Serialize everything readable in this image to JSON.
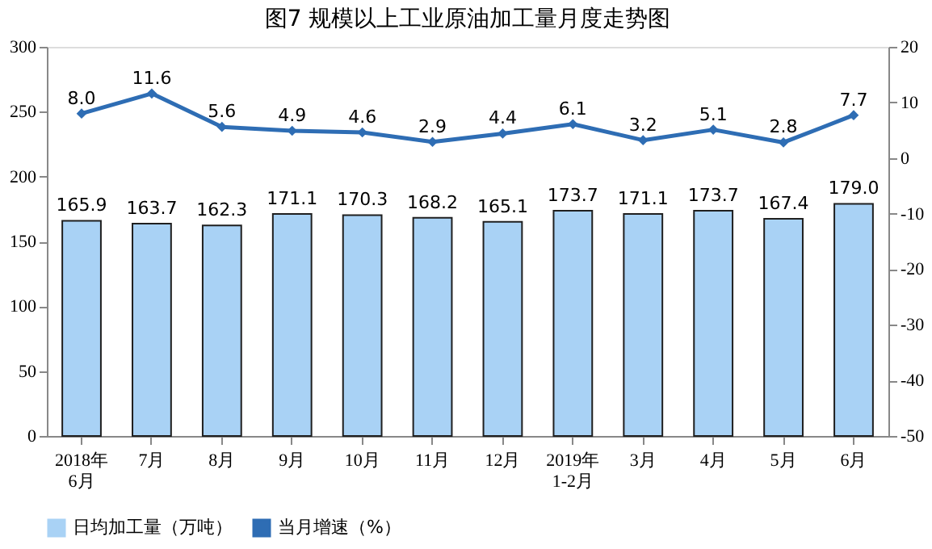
{
  "chart_data": {
    "type": "bar",
    "title": "图7  规模以上工业原油加工量月度走势图",
    "categories": [
      "2018年\n6月",
      "7月",
      "8月",
      "9月",
      "10月",
      "11月",
      "12月",
      "2019年\n1-2月",
      "3月",
      "4月",
      "5月",
      "6月"
    ],
    "series": [
      {
        "name": "日均加工量（万吨）",
        "color": "#a9d2f5",
        "values": [
          165.9,
          163.7,
          162.3,
          171.1,
          170.3,
          168.2,
          165.1,
          173.7,
          171.1,
          173.7,
          167.4,
          179.0
        ],
        "value_labels": [
          "165.9",
          "163.7",
          "162.3",
          "171.1",
          "170.3",
          "168.2",
          "165.1",
          "173.7",
          "171.1",
          "173.7",
          "167.4",
          "179.0"
        ]
      },
      {
        "name": "当月增速（%）",
        "type": "line",
        "axis": "y2",
        "color": "#2e6db4",
        "marker": "diamond",
        "values": [
          8.0,
          11.6,
          5.6,
          4.9,
          4.6,
          2.9,
          4.4,
          6.1,
          3.2,
          5.1,
          2.8,
          7.7
        ],
        "value_labels": [
          "8.0",
          "11.6",
          "5.6",
          "4.9",
          "4.6",
          "2.9",
          "4.4",
          "6.1",
          "3.2",
          "5.1",
          "2.8",
          "7.7"
        ]
      }
    ],
    "ylim": [
      0,
      300
    ],
    "yticks": [
      0,
      50,
      100,
      150,
      200,
      250,
      300
    ],
    "y2lim": [
      -50,
      20
    ],
    "y2ticks": [
      -50,
      -40,
      -30,
      -20,
      -10,
      0,
      10,
      20
    ],
    "legend": "bottom",
    "grid": false
  }
}
